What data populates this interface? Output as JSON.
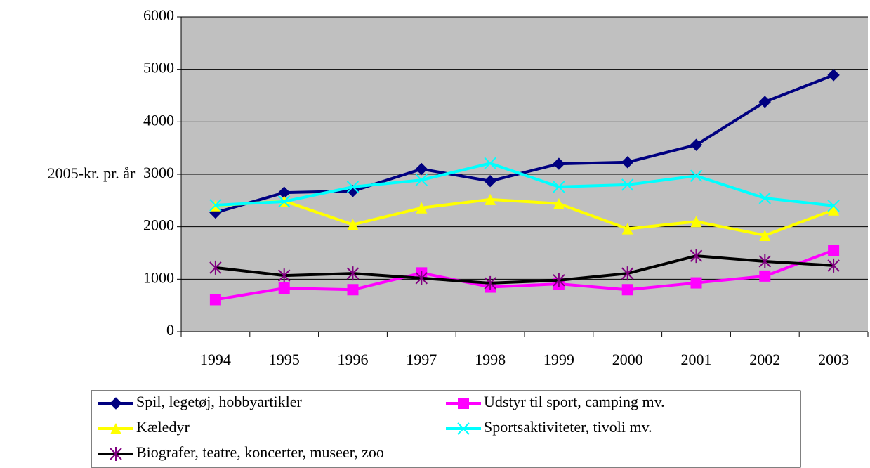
{
  "chart_data": {
    "type": "line",
    "y_label": "2005-kr. pr. år",
    "categories": [
      "1994",
      "1995",
      "1996",
      "1997",
      "1998",
      "1999",
      "2000",
      "2001",
      "2002",
      "2003"
    ],
    "series": [
      {
        "name": "Spil, legetøj, hobbyartikler",
        "color": "#000080",
        "marker": "diamond",
        "values": [
          2270,
          2650,
          2680,
          3100,
          2870,
          3200,
          3230,
          3560,
          4380,
          4890
        ]
      },
      {
        "name": "Udstyr til sport, camping mv.",
        "color": "#ff00ff",
        "marker": "square",
        "values": [
          610,
          830,
          800,
          1120,
          850,
          910,
          800,
          930,
          1060,
          1550
        ]
      },
      {
        "name": "Kæledyr",
        "color": "#ffff00",
        "marker": "triangle",
        "values": [
          2400,
          2490,
          2040,
          2360,
          2520,
          2440,
          1960,
          2100,
          1835,
          2320
        ]
      },
      {
        "name": "Sportsaktiviteter, tivoli mv.",
        "color": "#00ffff",
        "marker": "x",
        "values": [
          2410,
          2480,
          2760,
          2890,
          3210,
          2760,
          2800,
          2970,
          2545,
          2400
        ]
      },
      {
        "name": "Biografer, teatre, koncerter, museer, zoo",
        "color": "#000000",
        "marker": "asterisk",
        "values": [
          1220,
          1070,
          1110,
          1020,
          925,
          980,
          1110,
          1445,
          1340,
          1260
        ]
      }
    ],
    "ylim": [
      0,
      6000
    ],
    "yticks": [
      0,
      1000,
      2000,
      3000,
      4000,
      5000,
      6000
    ],
    "grid": true,
    "plot_background": "#c0c0c0",
    "legend": "bottom"
  }
}
